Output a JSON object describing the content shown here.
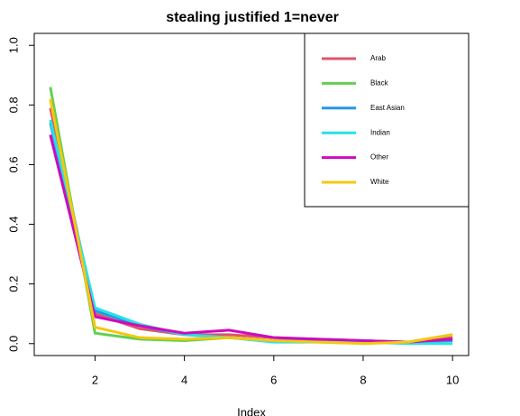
{
  "chart_data": {
    "type": "line",
    "title": "stealing justified 1=never",
    "x_label": "Index",
    "x": [
      1,
      2,
      3,
      4,
      5,
      6,
      7,
      8,
      9,
      10
    ],
    "series": [
      {
        "name": "Arab",
        "color": "#DF536B",
        "values": [
          0.79,
          0.1,
          0.05,
          0.03,
          0.03,
          0.02,
          0.015,
          0.01,
          0.005,
          0.02
        ]
      },
      {
        "name": "Black",
        "color": "#61D04F",
        "values": [
          0.86,
          0.035,
          0.015,
          0.01,
          0.02,
          0.01,
          0.01,
          0.005,
          0.005,
          0.03
        ]
      },
      {
        "name": "East Asian",
        "color": "#2297E6",
        "values": [
          0.74,
          0.11,
          0.06,
          0.03,
          0.02,
          0.01,
          0.01,
          0.01,
          0.005,
          0.01
        ]
      },
      {
        "name": "Indian",
        "color": "#28E2E5",
        "values": [
          0.75,
          0.12,
          0.065,
          0.03,
          0.02,
          0.005,
          0.005,
          0.005,
          0.0,
          0.0
        ]
      },
      {
        "name": "Other",
        "color": "#CD0BBC",
        "values": [
          0.7,
          0.09,
          0.06,
          0.035,
          0.045,
          0.02,
          0.015,
          0.01,
          0.005,
          0.015
        ]
      },
      {
        "name": "White",
        "color": "#F5C710",
        "values": [
          0.82,
          0.055,
          0.02,
          0.015,
          0.02,
          0.01,
          0.005,
          0.0,
          0.005,
          0.03
        ]
      }
    ],
    "xlim": [
      0.64,
      10.36
    ],
    "xticks": [
      2,
      4,
      6,
      8,
      10
    ],
    "ylim": [
      -0.04,
      1.04
    ],
    "yticks": [
      {
        "value": 0,
        "label": "0.0"
      },
      0.2,
      0.4,
      0.6,
      0.8,
      {
        "value": 1,
        "label": "1.0"
      }
    ],
    "legend": "top-right"
  }
}
